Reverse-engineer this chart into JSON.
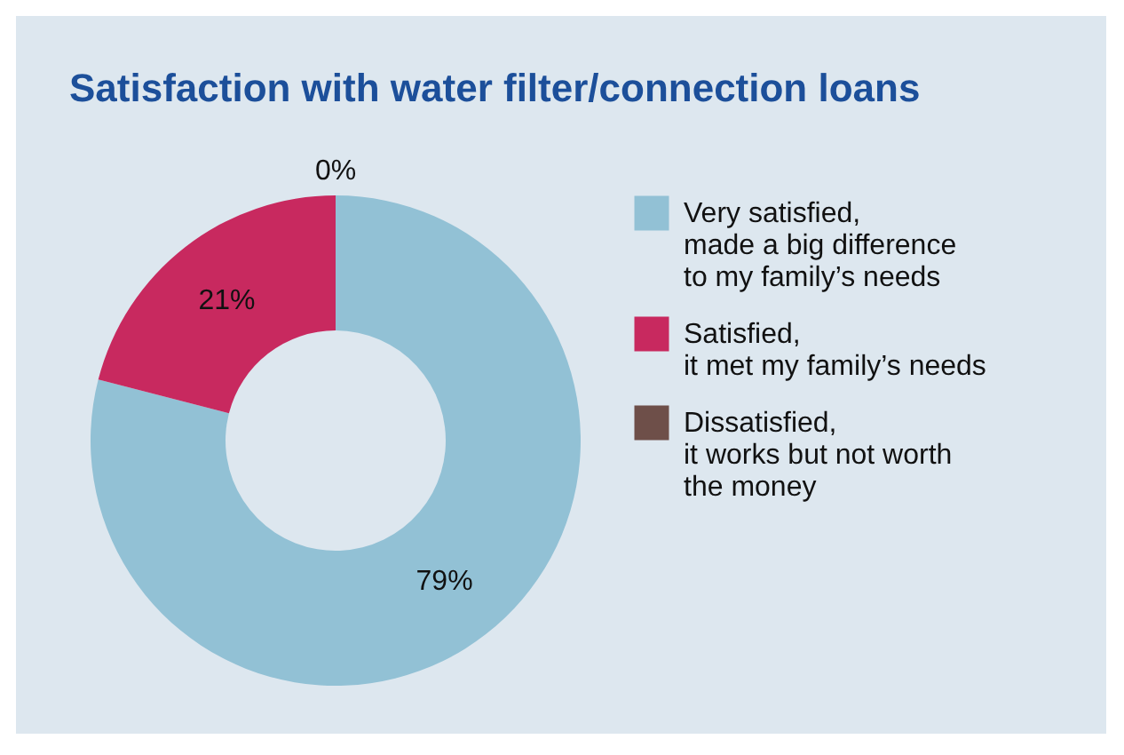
{
  "chart_data": {
    "type": "donut",
    "title": "Satisfaction with water filter/connection loans",
    "categories": [
      "Very satisfied,\nmade a big difference\nto my family’s needs",
      "Satisfied,\nit met my family’s needs",
      "Dissatisfied,\nit works but not worth\nthe money"
    ],
    "values": [
      79,
      21,
      0
    ],
    "colors": [
      "#92c1d5",
      "#c8295f",
      "#6e4f49"
    ],
    "value_labels": [
      "79%",
      "21%",
      "0%"
    ],
    "legend": "right"
  }
}
